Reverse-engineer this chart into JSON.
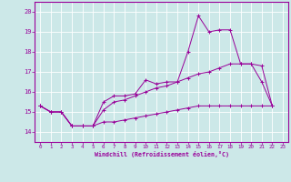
{
  "xlabel": "Windchill (Refroidissement éolien,°C)",
  "background_color": "#cce8e8",
  "grid_color": "#ffffff",
  "line_color": "#990099",
  "xlim": [
    -0.5,
    23.5
  ],
  "ylim": [
    13.5,
    20.5
  ],
  "xticks": [
    0,
    1,
    2,
    3,
    4,
    5,
    6,
    7,
    8,
    9,
    10,
    11,
    12,
    13,
    14,
    15,
    16,
    17,
    18,
    19,
    20,
    21,
    22,
    23
  ],
  "yticks": [
    14,
    15,
    16,
    17,
    18,
    19,
    20
  ],
  "series1_x": [
    0,
    1,
    2,
    3,
    4,
    5,
    6,
    7,
    8,
    9,
    10,
    11,
    12,
    13,
    14,
    15,
    16,
    17,
    18,
    19,
    20,
    21,
    22
  ],
  "series1_y": [
    15.3,
    15.0,
    15.0,
    14.3,
    14.3,
    14.3,
    15.5,
    15.8,
    15.8,
    15.9,
    16.6,
    16.4,
    16.5,
    16.5,
    18.0,
    19.8,
    19.0,
    19.1,
    19.1,
    17.4,
    17.4,
    16.5,
    15.3
  ],
  "series2_x": [
    0,
    1,
    2,
    3,
    4,
    5,
    6,
    7,
    8,
    9,
    10,
    11,
    12,
    13,
    14,
    15,
    16,
    17,
    18,
    19,
    20,
    21,
    22
  ],
  "series2_y": [
    15.3,
    15.0,
    15.0,
    14.3,
    14.3,
    14.3,
    15.1,
    15.5,
    15.6,
    15.8,
    16.0,
    16.2,
    16.3,
    16.5,
    16.7,
    16.9,
    17.0,
    17.2,
    17.4,
    17.4,
    17.4,
    17.3,
    15.3
  ],
  "series3_x": [
    0,
    1,
    2,
    3,
    4,
    5,
    6,
    7,
    8,
    9,
    10,
    11,
    12,
    13,
    14,
    15,
    16,
    17,
    18,
    19,
    20,
    21,
    22
  ],
  "series3_y": [
    15.3,
    15.0,
    15.0,
    14.3,
    14.3,
    14.3,
    14.5,
    14.5,
    14.6,
    14.7,
    14.8,
    14.9,
    15.0,
    15.1,
    15.2,
    15.3,
    15.3,
    15.3,
    15.3,
    15.3,
    15.3,
    15.3,
    15.3
  ]
}
